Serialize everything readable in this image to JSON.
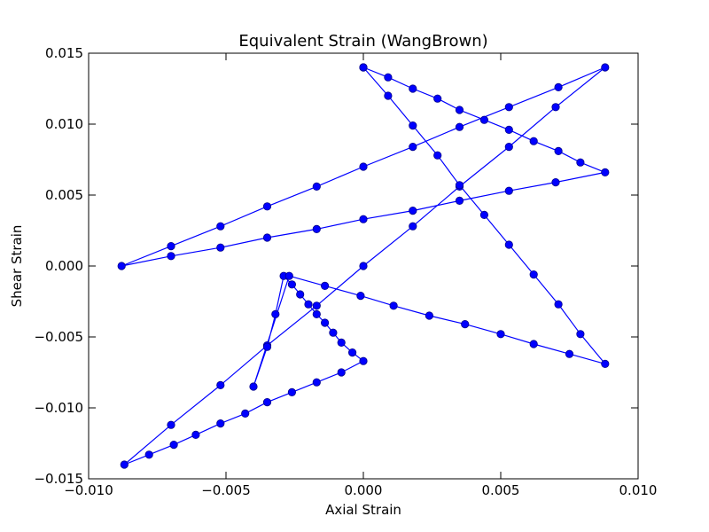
{
  "chart_data": {
    "type": "line",
    "title": "Equivalent Strain (WangBrown)",
    "xlabel": "Axial Strain",
    "ylabel": "Shear Strain",
    "xlim": [
      -0.01,
      0.01
    ],
    "ylim": [
      -0.015,
      0.015
    ],
    "xticks": [
      -0.01,
      -0.005,
      0.0,
      0.005,
      0.01
    ],
    "yticks": [
      -0.015,
      -0.01,
      -0.005,
      0.0,
      0.005,
      0.01,
      0.015
    ],
    "xtick_labels": [
      "−0.010",
      "−0.005",
      "0.000",
      "0.005",
      "0.010"
    ],
    "ytick_labels": [
      "−0.015",
      "−0.010",
      "−0.005",
      "0.000",
      "0.005",
      "0.010",
      "0.015"
    ],
    "grid": false,
    "legend": "none",
    "line_color": "#0000ff",
    "marker_color": "#0000ff",
    "marker": "circle",
    "series": [
      {
        "x": [
          0.0,
          0.0009,
          0.0018,
          0.0027,
          0.0035,
          0.0044,
          0.0053,
          0.0062,
          0.0071,
          0.0079,
          0.0088,
          0.007,
          0.0053,
          0.0035,
          0.0018,
          0.0,
          -0.0017,
          -0.0035,
          -0.0052,
          -0.007,
          -0.0088,
          -0.007,
          -0.0052,
          -0.0035,
          -0.0017,
          0.0,
          0.0018,
          0.0035,
          0.0053,
          0.0071,
          0.0088,
          0.007,
          0.0053,
          0.0035,
          0.0018,
          0.0,
          -0.0017,
          -0.0035,
          -0.0052,
          -0.007,
          -0.0087,
          -0.0078,
          -0.0069,
          -0.0061,
          -0.0052,
          -0.0043,
          -0.0035,
          -0.0026,
          -0.0017,
          -0.0008,
          0.0,
          -0.0004,
          -0.0008,
          -0.0011,
          -0.0014,
          -0.0017,
          -0.002,
          -0.0023,
          -0.0026,
          -0.0029,
          -0.0032,
          -0.0035,
          -0.004,
          -0.0027,
          -0.0014,
          -0.0001,
          0.0011,
          0.0024,
          0.0037,
          0.005,
          0.0062,
          0.0075,
          0.0088,
          0.0079,
          0.0071,
          0.0062,
          0.0053,
          0.0044,
          0.0035,
          0.0027,
          0.0018,
          0.0009,
          0.0
        ],
        "y": [
          0.014,
          0.0133,
          0.0125,
          0.0118,
          0.011,
          0.0103,
          0.0096,
          0.0088,
          0.0081,
          0.0073,
          0.0066,
          0.0059,
          0.0053,
          0.0046,
          0.0039,
          0.0033,
          0.0026,
          0.002,
          0.0013,
          0.0007,
          0.0,
          0.0014,
          0.0028,
          0.0042,
          0.0056,
          0.007,
          0.0084,
          0.0098,
          0.0112,
          0.0126,
          0.014,
          0.0112,
          0.0084,
          0.0056,
          0.0028,
          0.0,
          -0.0028,
          -0.0056,
          -0.0084,
          -0.0112,
          -0.014,
          -0.0133,
          -0.0126,
          -0.0119,
          -0.0111,
          -0.0104,
          -0.0096,
          -0.0089,
          -0.0082,
          -0.0075,
          -0.0067,
          -0.0061,
          -0.0054,
          -0.0047,
          -0.004,
          -0.0034,
          -0.0027,
          -0.002,
          -0.0013,
          -0.0007,
          -0.0034,
          -0.0057,
          -0.0085,
          -0.0007,
          -0.0014,
          -0.0021,
          -0.0028,
          -0.0035,
          -0.0041,
          -0.0048,
          -0.0055,
          -0.0062,
          -0.0069,
          -0.0048,
          -0.0027,
          -0.0006,
          0.0015,
          0.0036,
          0.0057,
          0.0078,
          0.0099,
          0.012,
          0.014
        ]
      }
    ]
  }
}
